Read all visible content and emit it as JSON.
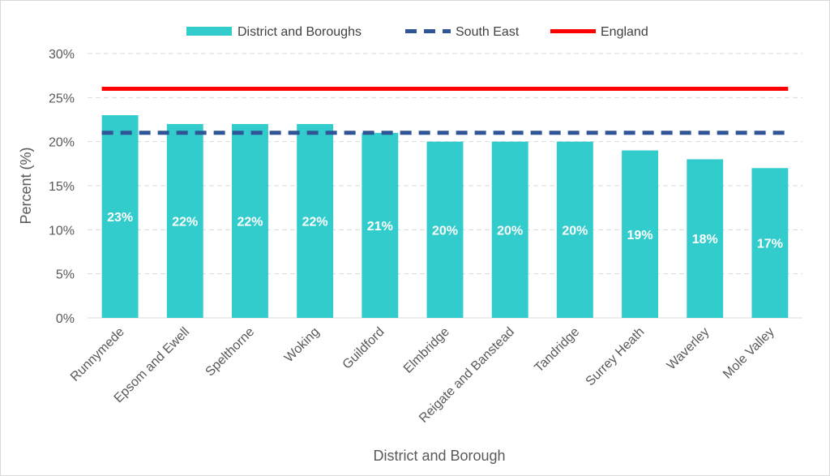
{
  "chart_data": {
    "type": "bar",
    "title": "",
    "xlabel": "District and Borough",
    "ylabel": "Percent (%)",
    "ylim": [
      0,
      30
    ],
    "yticks": [
      0,
      5,
      10,
      15,
      20,
      25,
      30
    ],
    "ytick_labels": [
      "0%",
      "5%",
      "10%",
      "15%",
      "20%",
      "25%",
      "30%"
    ],
    "grid": "horizontal dashed",
    "legend_position": "top",
    "categories": [
      "Runnymede",
      "Epsom and Ewell",
      "Spelthorne",
      "Woking",
      "Guildford",
      "Elmbridge",
      "Reigate and Banstead",
      "Tandridge",
      "Surrey Heath",
      "Waverley",
      "Mole Valley"
    ],
    "series": [
      {
        "name": "District and Boroughs",
        "kind": "bar",
        "color": "#33cccc",
        "values": [
          23,
          22,
          22,
          22,
          21,
          20,
          20,
          20,
          19,
          18,
          17
        ],
        "data_labels": [
          "23%",
          "22%",
          "22%",
          "22%",
          "21%",
          "20%",
          "20%",
          "20%",
          "19%",
          "18%",
          "17%"
        ]
      },
      {
        "name": "South East",
        "kind": "line-dashed",
        "color": "#2f5597",
        "values": [
          21,
          21,
          21,
          21,
          21,
          21,
          21,
          21,
          21,
          21,
          21
        ]
      },
      {
        "name": "England",
        "kind": "line",
        "color": "#ff0000",
        "values": [
          26,
          26,
          26,
          26,
          26,
          26,
          26,
          26,
          26,
          26,
          26
        ]
      }
    ]
  }
}
